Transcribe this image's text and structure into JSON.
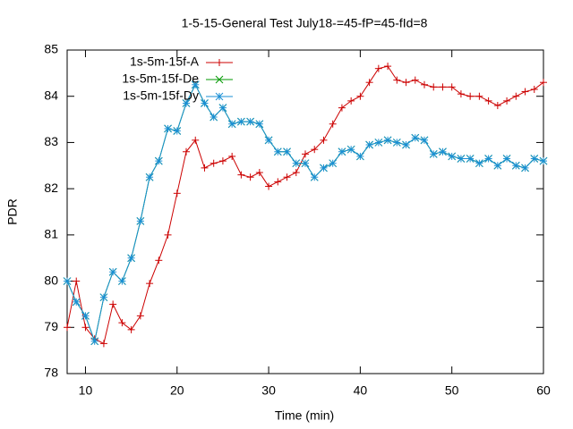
{
  "chart_data": {
    "type": "line",
    "title": "1-5-15-General Test July18-=45-fP=45-fId=8",
    "x_label": "Time (min)",
    "y_label": "PDR",
    "x": [
      8,
      9,
      10,
      11,
      12,
      13,
      14,
      15,
      16,
      17,
      18,
      19,
      20,
      21,
      22,
      23,
      24,
      25,
      26,
      27,
      28,
      29,
      30,
      31,
      32,
      33,
      34,
      35,
      36,
      37,
      38,
      39,
      40,
      41,
      42,
      43,
      44,
      45,
      46,
      47,
      48,
      49,
      50,
      51,
      52,
      53,
      54,
      55,
      56,
      57,
      58,
      59,
      60
    ],
    "series": [
      {
        "name": "1s-5m-15f-A",
        "color": "#cc0000",
        "marker": "plus",
        "values": [
          79.0,
          80.0,
          79.0,
          78.75,
          78.65,
          79.5,
          79.1,
          78.95,
          79.25,
          79.95,
          80.45,
          81.0,
          81.9,
          82.8,
          83.05,
          82.45,
          82.55,
          82.6,
          82.7,
          82.3,
          82.25,
          82.35,
          82.05,
          82.15,
          82.25,
          82.35,
          82.75,
          82.85,
          83.05,
          83.4,
          83.75,
          83.9,
          84.0,
          84.3,
          84.6,
          84.65,
          84.35,
          84.3,
          84.35,
          84.25,
          84.2,
          84.2,
          84.2,
          84.05,
          84.0,
          84.0,
          83.9,
          83.8,
          83.9,
          84.0,
          84.1,
          84.15,
          84.3
        ]
      },
      {
        "name": "1s-5m-15f-De",
        "color": "#009900",
        "marker": "cross",
        "values": [
          80.0,
          79.55,
          79.25,
          78.7,
          79.65,
          80.2,
          80.0,
          80.5,
          81.3,
          82.25,
          82.6,
          83.3,
          83.25,
          83.85,
          84.25,
          83.85,
          83.55,
          83.75,
          83.4,
          83.45,
          83.45,
          83.4,
          83.05,
          82.8,
          82.8,
          82.55,
          82.55,
          82.25,
          82.45,
          82.55,
          82.8,
          82.85,
          82.7,
          82.95,
          83.0,
          83.05,
          83.0,
          82.95,
          83.1,
          83.05,
          82.75,
          82.8,
          82.7,
          82.65,
          82.65,
          82.55,
          82.65,
          82.5,
          82.65,
          82.5,
          82.45,
          82.65,
          82.6
        ]
      },
      {
        "name": "1s-5m-15f-Dy",
        "color": "#1a8fd6",
        "marker": "star",
        "values": [
          80.0,
          79.55,
          79.25,
          78.7,
          79.65,
          80.2,
          80.0,
          80.5,
          81.3,
          82.25,
          82.6,
          83.3,
          83.25,
          83.85,
          84.25,
          83.85,
          83.55,
          83.75,
          83.4,
          83.45,
          83.45,
          83.4,
          83.05,
          82.8,
          82.8,
          82.55,
          82.55,
          82.25,
          82.45,
          82.55,
          82.8,
          82.85,
          82.7,
          82.95,
          83.0,
          83.05,
          83.0,
          82.95,
          83.1,
          83.05,
          82.75,
          82.8,
          82.7,
          82.65,
          82.65,
          82.55,
          82.65,
          82.5,
          82.65,
          82.5,
          82.45,
          82.65,
          82.6
        ]
      }
    ],
    "xlim": [
      8,
      60
    ],
    "xticks": [
      10,
      20,
      30,
      40,
      50,
      60
    ],
    "ylim": [
      78,
      85
    ],
    "yticks": [
      78,
      79,
      80,
      81,
      82,
      83,
      84,
      85
    ],
    "grid": false,
    "legend": "top-left"
  }
}
